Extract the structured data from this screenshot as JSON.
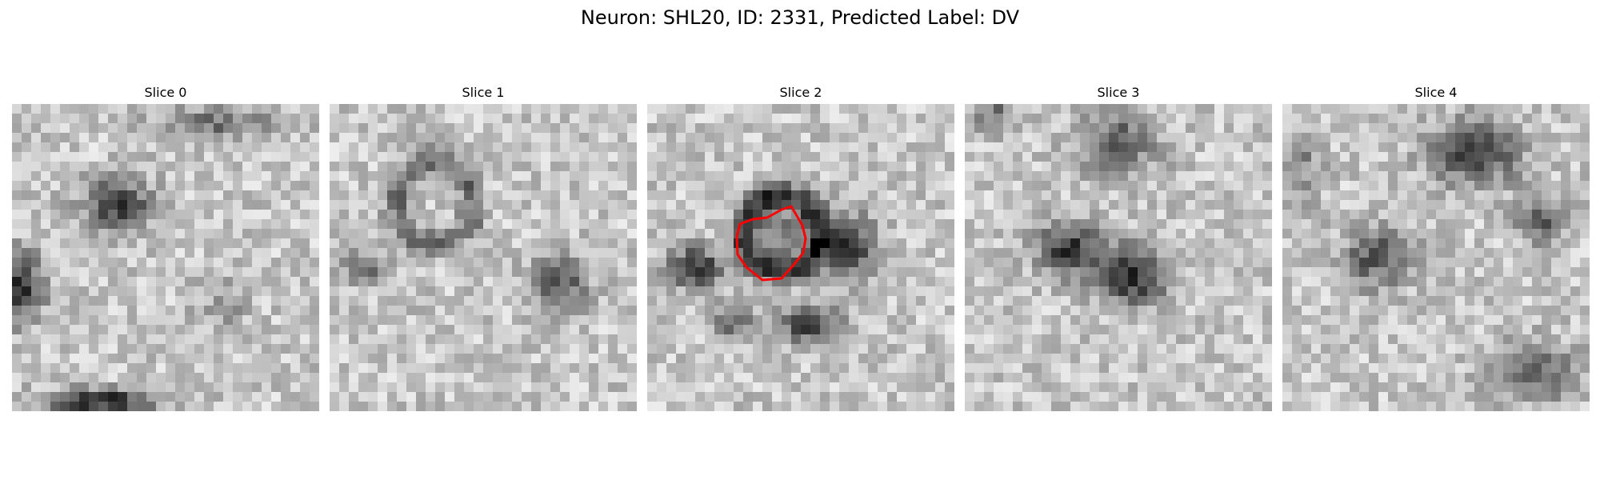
{
  "figure": {
    "title": "Neuron: SHL20, ID: 2331, Predicted Label: DV",
    "neuron": "SHL20",
    "id": 2331,
    "predicted_label": "DV"
  },
  "panels": [
    {
      "title": "Slice 0"
    },
    {
      "title": "Slice 1"
    },
    {
      "title": "Slice 2",
      "contour": true
    },
    {
      "title": "Slice 3"
    },
    {
      "title": "Slice 4"
    }
  ],
  "colors": {
    "contour": "#ff0000",
    "background": "#ffffff"
  },
  "colormap": "gray"
}
